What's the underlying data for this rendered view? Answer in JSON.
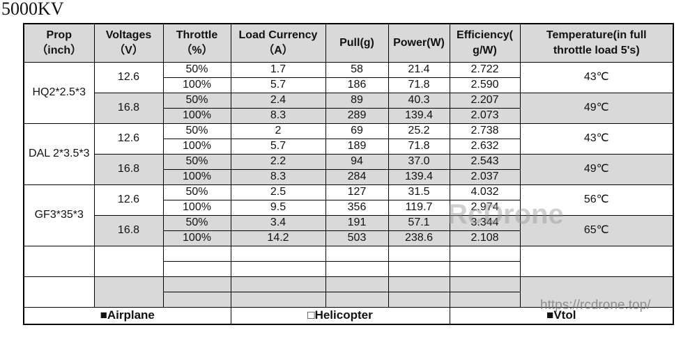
{
  "title": "5000KV",
  "table": {
    "headers": [
      "Prop\n（inch）",
      "Voltages\n（V）",
      "Throttle\n（%）",
      "Load Currency\n（A）",
      "Pull(g)",
      "Power(W)",
      "Efficiency(\ng/W)",
      "Temperature(in full\nthrottle load 5's)"
    ],
    "groups": [
      {
        "prop": "HQ2*2.5*3",
        "voltages": [
          {
            "voltage": "12.6",
            "temperature": "43℃",
            "rows": [
              [
                "50%",
                "1.7",
                "58",
                "21.4",
                "2.722"
              ],
              [
                "100%",
                "5.7",
                "186",
                "71.8",
                "2.590"
              ]
            ]
          },
          {
            "voltage": "16.8",
            "temperature": "49℃",
            "rows": [
              [
                "50%",
                "2.4",
                "89",
                "40.3",
                "2.207"
              ],
              [
                "100%",
                "8.3",
                "289",
                "139.4",
                "2.073"
              ]
            ]
          }
        ]
      },
      {
        "prop": "DAL 2*3.5*3",
        "voltages": [
          {
            "voltage": "12.6",
            "temperature": "43℃",
            "rows": [
              [
                "50%",
                "2",
                "69",
                "25.2",
                "2.738"
              ],
              [
                "100%",
                "5.7",
                "189",
                "71.8",
                "2.632"
              ]
            ]
          },
          {
            "voltage": "16.8",
            "temperature": "49℃",
            "rows": [
              [
                "50%",
                "2.2",
                "94",
                "37.0",
                "2.543"
              ],
              [
                "100%",
                "8.3",
                "284",
                "139.4",
                "2.037"
              ]
            ]
          }
        ]
      },
      {
        "prop": "GF3*35*3",
        "voltages": [
          {
            "voltage": "12.6",
            "temperature": "56℃",
            "rows": [
              [
                "50%",
                "2.5",
                "127",
                "31.5",
                "4.032"
              ],
              [
                "100%",
                "9.5",
                "356",
                "119.7",
                "2.974"
              ]
            ]
          },
          {
            "voltage": "16.8",
            "temperature": "65℃",
            "rows": [
              [
                "50%",
                "3.4",
                "191",
                "57.1",
                "3.344"
              ],
              [
                "100%",
                "14.2",
                "503",
                "238.6",
                "2.108"
              ]
            ]
          }
        ]
      }
    ],
    "footer": [
      "■Airplane",
      "□Helicopter",
      "■Vtol"
    ]
  },
  "watermarks": [
    "RcDrone",
    "https://rcdrone.top/"
  ]
}
